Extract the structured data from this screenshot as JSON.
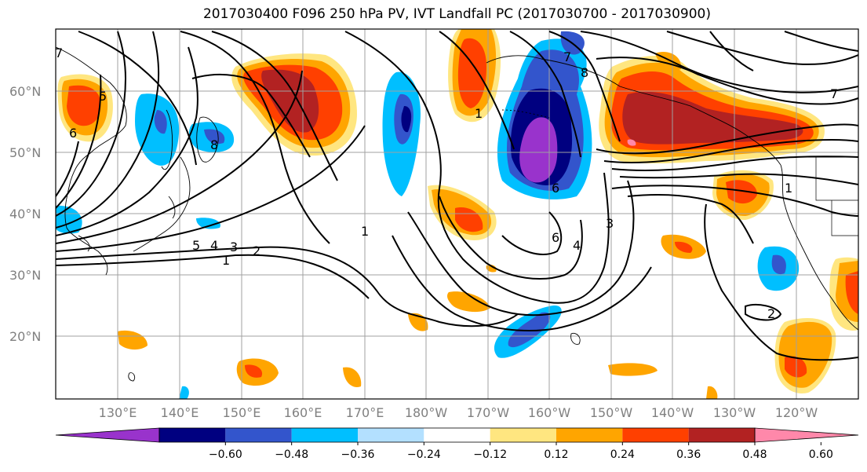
{
  "title": "2017030400 F096 250 hPa PV, IVT Landfall PC (2017030700 - 2017030900)",
  "axes": {
    "lat_labels": [
      "60°N",
      "50°N",
      "40°N",
      "30°N",
      "20°N"
    ],
    "lon_labels": [
      "130°E",
      "140°E",
      "150°E",
      "160°E",
      "170°E",
      "180°W",
      "170°W",
      "160°W",
      "150°W",
      "140°W",
      "130°W",
      "120°W"
    ]
  },
  "colorbar": {
    "tick_labels": [
      "−0.60",
      "−0.48",
      "−0.36",
      "−0.24",
      "−0.12",
      "0.12",
      "0.24",
      "0.36",
      "0.48",
      "0.60"
    ],
    "colors": [
      "#9933cc",
      "#000080",
      "#3355cc",
      "#00bfff",
      "#b3e0ff",
      "#ffffff",
      "#ffe680",
      "#ffa500",
      "#ff4000",
      "#b22222",
      "#ff88aa"
    ]
  },
  "contour_labels": [
    "1",
    "2",
    "3",
    "4",
    "5",
    "6",
    "7",
    "8",
    "1",
    "3",
    "4",
    "6",
    "1",
    "2",
    "7",
    "8",
    "5",
    "6",
    "7",
    "1"
  ]
}
